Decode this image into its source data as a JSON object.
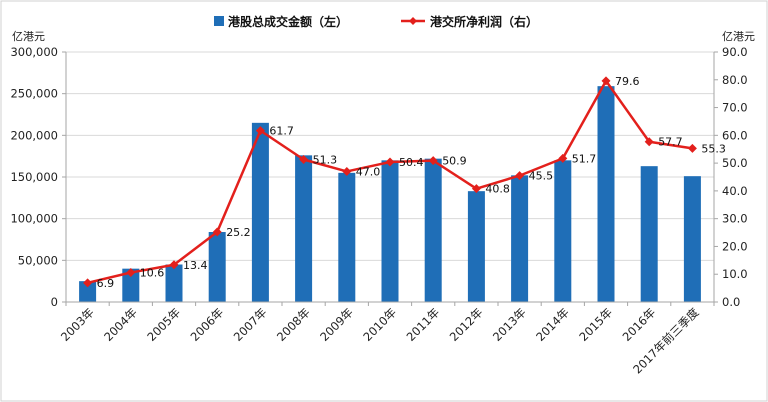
{
  "chart_data": {
    "type": "bar",
    "categories": [
      "2003年",
      "2004年",
      "2005年",
      "2006年",
      "2007年",
      "2008年",
      "2009年",
      "2010年",
      "2011年",
      "2012年",
      "2013年",
      "2014年",
      "2015年",
      "2016年",
      "2017年前三季度"
    ],
    "series": [
      {
        "name": "港股总成交金额（左）",
        "type": "bar",
        "axis": "left",
        "color": "#1F6EB7",
        "values": [
          25000,
          40000,
          45000,
          84000,
          215000,
          176000,
          155000,
          170000,
          172000,
          133000,
          152000,
          170000,
          259000,
          163000,
          151000
        ]
      },
      {
        "name": "港交所净利润（右）",
        "type": "line",
        "axis": "right",
        "color": "#E3201C",
        "values": [
          6.9,
          10.6,
          13.4,
          25.2,
          61.7,
          51.3,
          47.0,
          50.4,
          50.9,
          40.8,
          45.5,
          51.7,
          79.6,
          57.7,
          55.3
        ],
        "data_labels": [
          "6.9",
          "10.6",
          "13.4",
          "25.2",
          "61.7",
          "51.3",
          "47.0",
          "50.4",
          "50.9",
          "40.8",
          "45.5",
          "51.7",
          "79.6",
          "57.7",
          "55.3"
        ]
      }
    ],
    "y_left": {
      "unit": "亿港元",
      "range": [
        0,
        300000
      ],
      "tick_labels": [
        "0",
        "50,000",
        "100,000",
        "150,000",
        "200,000",
        "250,000",
        "300,000"
      ]
    },
    "y_right": {
      "unit": "亿港元",
      "range": [
        0,
        90
      ],
      "tick_labels": [
        "0.0",
        "10.0",
        "20.0",
        "30.0",
        "40.0",
        "50.0",
        "60.0",
        "70.0",
        "80.0",
        "90.0"
      ]
    },
    "grid": true,
    "legend": "top-center",
    "gridline_color": "#D9D9D9",
    "axis_color": "#A6A6A6"
  }
}
